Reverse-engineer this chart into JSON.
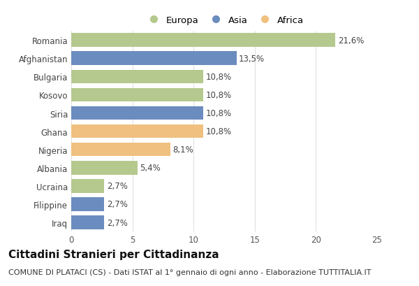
{
  "categories": [
    "Romania",
    "Afghanistan",
    "Bulgaria",
    "Kosovo",
    "Siria",
    "Ghana",
    "Nigeria",
    "Albania",
    "Ucraina",
    "Filippine",
    "Iraq"
  ],
  "values": [
    21.6,
    13.5,
    10.8,
    10.8,
    10.8,
    10.8,
    8.1,
    5.4,
    2.7,
    2.7,
    2.7
  ],
  "labels": [
    "21,6%",
    "13,5%",
    "10,8%",
    "10,8%",
    "10,8%",
    "10,8%",
    "8,1%",
    "5,4%",
    "2,7%",
    "2,7%",
    "2,7%"
  ],
  "colors": [
    "#b5c98e",
    "#6b8cbf",
    "#b5c98e",
    "#b5c98e",
    "#6b8cbf",
    "#f0c080",
    "#f0c080",
    "#b5c98e",
    "#b5c98e",
    "#6b8cbf",
    "#6b8cbf"
  ],
  "legend_labels": [
    "Europa",
    "Asia",
    "Africa"
  ],
  "legend_colors": [
    "#b5c98e",
    "#6b8cbf",
    "#f0c080"
  ],
  "xlim": [
    0,
    25
  ],
  "xticks": [
    0,
    5,
    10,
    15,
    20,
    25
  ],
  "title": "Cittadini Stranieri per Cittadinanza",
  "subtitle": "COMUNE DI PLATACI (CS) - Dati ISTAT al 1° gennaio di ogni anno - Elaborazione TUTTITALIA.IT",
  "background_color": "#ffffff",
  "bar_height": 0.75,
  "grid_color": "#e0e0e0",
  "title_fontsize": 11,
  "subtitle_fontsize": 8,
  "label_fontsize": 8.5,
  "tick_fontsize": 8.5,
  "legend_fontsize": 9.5
}
